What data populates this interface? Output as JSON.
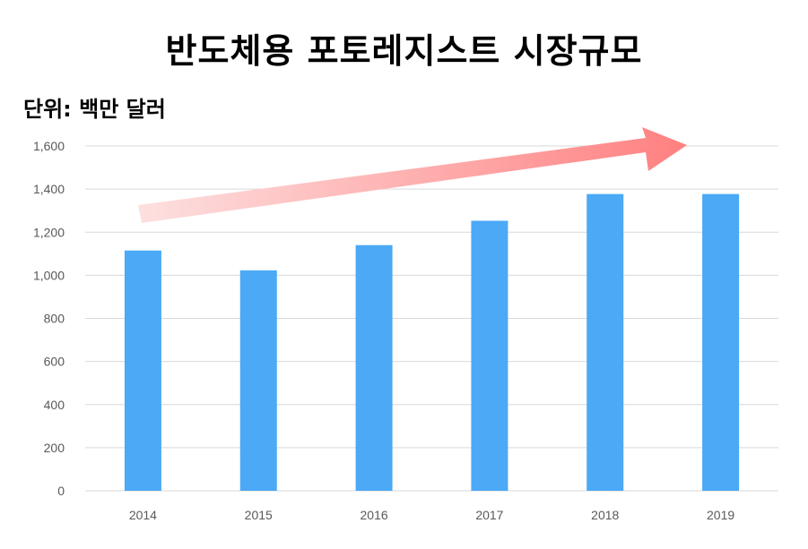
{
  "chart_data": {
    "type": "bar",
    "title": "반도체용 포토레지스트 시장규모",
    "unit_label": "단위: 백만 달러",
    "categories": [
      "2014",
      "2015",
      "2016",
      "2017",
      "2018",
      "2019"
    ],
    "values": [
      1115,
      1023,
      1140,
      1253,
      1377,
      1377
    ],
    "ylim": [
      0,
      1600
    ],
    "yticks": [
      0,
      200,
      400,
      600,
      800,
      1000,
      1200,
      1400,
      1600
    ],
    "ytick_labels": [
      "0",
      "200",
      "400",
      "600",
      "800",
      "1,000",
      "1,200",
      "1,400",
      "1,600"
    ],
    "grid": true,
    "bar_color": "#4BA9F6",
    "grid_color": "#D9D9D9",
    "tick_label_color": "#595959",
    "annotation": {
      "shape": "upward-trend-arrow",
      "color_start": "#FDE0E0",
      "color_end": "#FF8080"
    }
  }
}
